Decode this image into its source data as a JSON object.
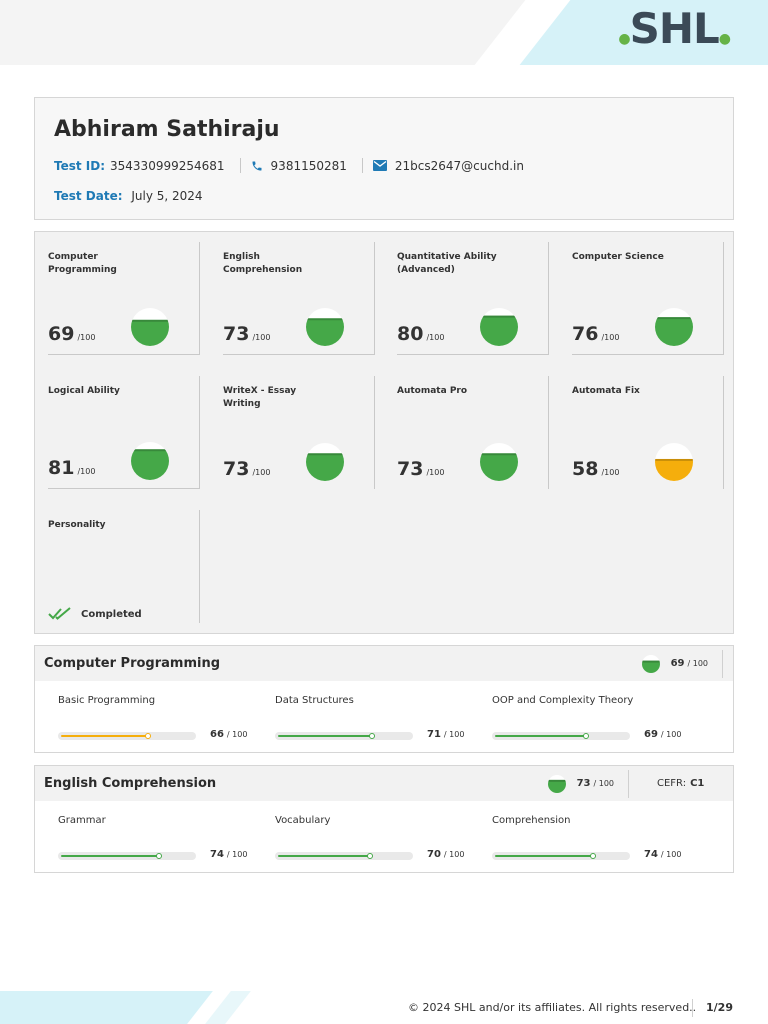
{
  "brand": {
    "logo_text": "SHL"
  },
  "profile": {
    "name": "Abhiram Sathiraju",
    "test_id_label": "Test ID:",
    "test_id": "354330999254681",
    "phone": "9381150281",
    "email": "21bcs2647@cuchd.in",
    "test_date_label": "Test Date:",
    "test_date": "July 5, 2024"
  },
  "colors": {
    "green": "#45a848",
    "amber": "#f5ae0c",
    "blue": "#1f7ab5"
  },
  "scores": [
    {
      "name": "Computer Programming",
      "score": 69,
      "out_of": "/100",
      "color": "green"
    },
    {
      "name": "English Comprehension",
      "score": 73,
      "out_of": "/100",
      "color": "green"
    },
    {
      "name": "Quantitative Ability (Advanced)",
      "score": 80,
      "out_of": "/100",
      "color": "green"
    },
    {
      "name": "Computer Science",
      "score": 76,
      "out_of": "/100",
      "color": "green"
    },
    {
      "name": "Logical Ability",
      "score": 81,
      "out_of": "/100",
      "color": "green"
    },
    {
      "name": "WriteX - Essay Writing",
      "score": 73,
      "out_of": "/100",
      "color": "green"
    },
    {
      "name": "Automata Pro",
      "score": 73,
      "out_of": "/100",
      "color": "green"
    },
    {
      "name": "Automata Fix",
      "score": 58,
      "out_of": "/100",
      "color": "amber"
    }
  ],
  "personality": {
    "name": "Personality",
    "status": "Completed"
  },
  "sections": [
    {
      "title": "Computer Programming",
      "score": 69,
      "out_of": "/ 100",
      "subs": [
        {
          "name": "Basic Programming",
          "score": 66,
          "out_of": "/ 100",
          "color": "amber"
        },
        {
          "name": "Data Structures",
          "score": 71,
          "out_of": "/ 100",
          "color": "green"
        },
        {
          "name": "OOP and Complexity Theory",
          "score": 69,
          "out_of": "/ 100",
          "color": "green"
        }
      ]
    },
    {
      "title": "English Comprehension",
      "score": 73,
      "out_of": "/ 100",
      "cefr_label": "CEFR:",
      "cefr_value": "C1",
      "subs": [
        {
          "name": "Grammar",
          "score": 74,
          "out_of": "/ 100",
          "color": "green"
        },
        {
          "name": "Vocabulary",
          "score": 70,
          "out_of": "/ 100",
          "color": "green"
        },
        {
          "name": "Comprehension",
          "score": 74,
          "out_of": "/ 100",
          "color": "green"
        }
      ]
    }
  ],
  "footer": {
    "copyright": "© 2024 SHL and/or its affiliates. All rights reserved..",
    "page": "1/29"
  }
}
